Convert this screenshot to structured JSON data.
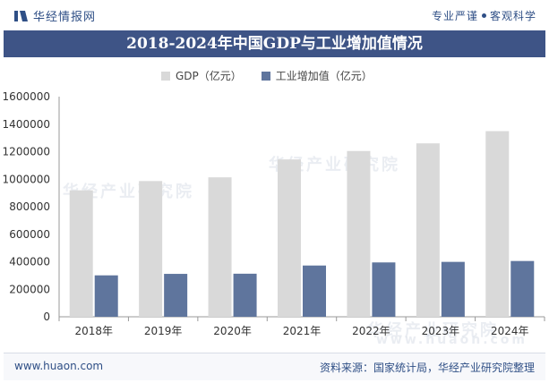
{
  "header": {
    "brand": "华经情报网",
    "slogan_left": "专业严谨",
    "slogan_right": "客观科学"
  },
  "colors": {
    "gdp": "#d9d9d9",
    "industry": "#5f759d",
    "title_bg": "#3e5486",
    "brand": "#2f4f86"
  },
  "chart_data": {
    "type": "bar",
    "title": "2018-2024年中国GDP与工业增加值情况",
    "categories": [
      "2018年",
      "2019年",
      "2020年",
      "2021年",
      "2022年",
      "2023年",
      "2024年"
    ],
    "series": [
      {
        "name": "GDP（亿元）",
        "values": [
          919281,
          986515,
          1013567,
          1143670,
          1204724,
          1260582,
          1349084
        ]
      },
      {
        "name": "工业增加值（亿元）",
        "values": [
          301089,
          311859,
          313071,
          372575,
          395044,
          399103,
          405442
        ]
      }
    ],
    "yticks": [
      "0",
      "200000",
      "400000",
      "600000",
      "800000",
      "1000000",
      "1200000",
      "1400000",
      "1600000"
    ],
    "ylim": [
      0,
      1600000
    ],
    "xlabel": "",
    "ylabel": "",
    "legend": "top-center"
  },
  "footer": {
    "website": "www.huaon.com",
    "source": "资料来源：国家统计局，华经产业研究院整理"
  },
  "watermark": {
    "text_cn": "华经产业研究院",
    "text_en": "www.huaon.com"
  }
}
